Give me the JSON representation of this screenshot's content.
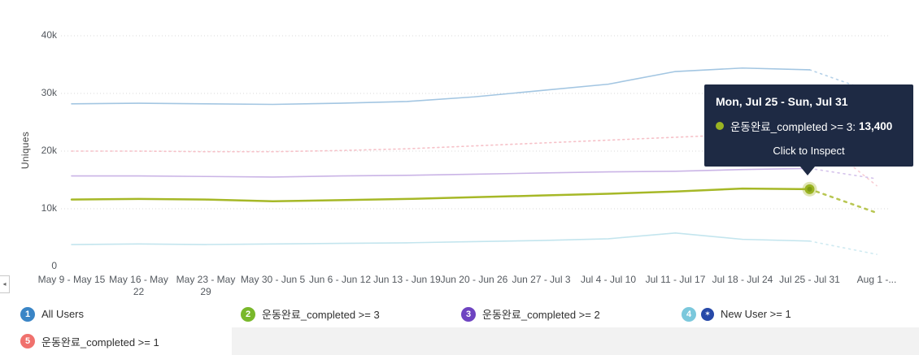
{
  "ui": {
    "collapse_glyph": "◂",
    "cohort_icon": "✶"
  },
  "tooltip": {
    "title": "Mon, Jul 25 - Sun, Jul 31",
    "series_label": "운동완료_completed >= 3:",
    "value": "13,400",
    "action": "Click to Inspect"
  },
  "colors": {
    "tooltip_bg": "#1e2a44",
    "grid": "#d9d9d9",
    "axis_text": "#54595f",
    "marker_core": "#7d9a14",
    "marker_mid": "#9ab322",
    "icon_navy": "#2749a8",
    "legend_filler": "#f2f2f2"
  },
  "chart_data": {
    "type": "line",
    "title": "",
    "xlabel": "",
    "ylabel": "Uniques",
    "ylim": [
      0,
      40000
    ],
    "grid": "horizontal-dotted",
    "legend_position": "bottom",
    "y_ticks": [
      "0",
      "10k",
      "20k",
      "30k",
      "40k"
    ],
    "y_tick_values": [
      0,
      10000,
      20000,
      30000,
      40000
    ],
    "categories": [
      "May 9 - May 15",
      "May 16 - May 22",
      "May 23 - May 29",
      "May 30 - Jun 5",
      "Jun 6 - Jun 12",
      "Jun 13 - Jun 19",
      "Jun 20 - Jun 26",
      "Jun 27 - Jul 3",
      "Jul 4 - Jul 10",
      "Jul 11 - Jul 17",
      "Jul 18 - Jul 24",
      "Jul 25 - Jul 31",
      "Aug 1 -..."
    ],
    "partial_from_index": 11,
    "series": [
      {
        "name": "All Users",
        "color": "#a3c6e2",
        "style": "solid",
        "emphasis": false,
        "values": [
          28200,
          28300,
          28200,
          28100,
          28300,
          28600,
          29400,
          30500,
          31600,
          33800,
          34400,
          34100,
          30000
        ]
      },
      {
        "name": "운동완료_completed >= 1",
        "color": "#f6c1c8",
        "style": "dotted",
        "emphasis": false,
        "values": [
          20000,
          20000,
          19900,
          19900,
          20100,
          20400,
          20900,
          21400,
          21900,
          22400,
          22900,
          23300,
          14000
        ]
      },
      {
        "name": "운동완료_completed >= 2",
        "color": "#cab4e6",
        "style": "solid",
        "emphasis": false,
        "values": [
          15700,
          15700,
          15600,
          15500,
          15700,
          15800,
          16000,
          16200,
          16400,
          16500,
          16800,
          17000,
          15200
        ]
      },
      {
        "name": "New User >= 1",
        "color": "#c3e5ee",
        "style": "solid",
        "emphasis": false,
        "values": [
          3800,
          3900,
          3800,
          3900,
          4000,
          4100,
          4300,
          4500,
          4800,
          5800,
          4700,
          4400,
          2100
        ]
      },
      {
        "name": "운동완료_completed >= 3",
        "color": "#a6b827",
        "style": "solid",
        "emphasis": true,
        "values": [
          11600,
          11700,
          11600,
          11300,
          11500,
          11700,
          12000,
          12300,
          12600,
          13000,
          13500,
          13400,
          9300
        ]
      }
    ],
    "highlight": {
      "series_index": 4,
      "category_index": 11,
      "value": 13400,
      "label": "운동완료_completed >= 3",
      "display_value": "13,400"
    }
  },
  "legend": {
    "rows": [
      [
        {
          "num": "1",
          "label": "All Users",
          "color": "#3a85c6",
          "icon": false
        },
        {
          "num": "2",
          "label": "운동완료_completed >= 3",
          "color": "#79b82b",
          "icon": false
        },
        {
          "num": "3",
          "label": "운동완료_completed >= 2",
          "color": "#6e44c1",
          "icon": false
        },
        {
          "num": "4",
          "label": "New User >= 1",
          "color": "#7bc8dc",
          "icon": true
        }
      ],
      [
        {
          "num": "5",
          "label": "운동완료_completed >= 1",
          "color": "#f0716d",
          "icon": false
        }
      ]
    ]
  }
}
